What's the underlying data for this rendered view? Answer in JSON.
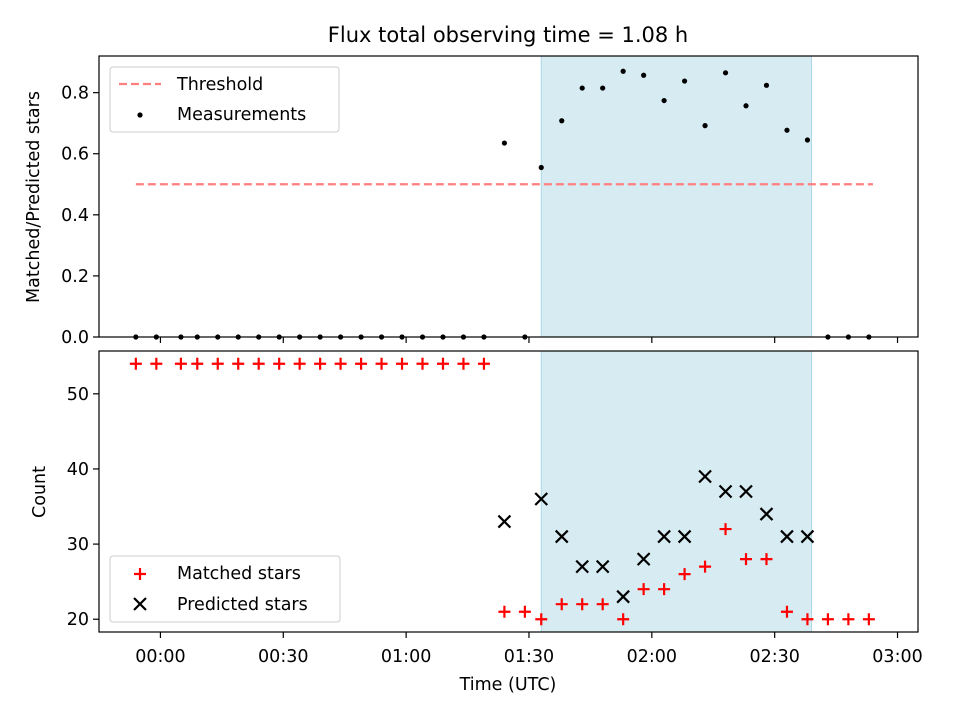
{
  "chart_data": [
    {
      "type": "scatter",
      "title": "Flux total observing time = 1.08 h",
      "xlabel": "",
      "ylabel": "Matched/Predicted stars",
      "xlim": [
        "23:45",
        "03:05"
      ],
      "ylim": [
        0,
        0.92
      ],
      "yticks": [
        "0.0",
        "0.2",
        "0.4",
        "0.6",
        "0.8"
      ],
      "shaded_interval": [
        "01:33",
        "02:39"
      ],
      "shade_color": "#add8e6",
      "legend_position": "upper left",
      "series": [
        {
          "name": "Threshold",
          "style": "dashed-line",
          "color": "#ff7f7f",
          "x": [
            "23:54",
            "02:54"
          ],
          "y": [
            0.5,
            0.5
          ]
        },
        {
          "name": "Measurements",
          "style": "dot",
          "color": "#000000",
          "x": [
            "23:54",
            "23:59",
            "00:05",
            "00:09",
            "00:14",
            "00:19",
            "00:24",
            "00:29",
            "00:34",
            "00:39",
            "00:44",
            "00:49",
            "00:54",
            "00:59",
            "01:04",
            "01:09",
            "01:14",
            "01:19",
            "01:24",
            "01:29",
            "01:33",
            "01:38",
            "01:43",
            "01:48",
            "01:53",
            "01:58",
            "02:03",
            "02:08",
            "02:13",
            "02:18",
            "02:23",
            "02:28",
            "02:33",
            "02:38",
            "02:43",
            "02:48",
            "02:53"
          ],
          "y": [
            0,
            0,
            0,
            0,
            0,
            0,
            0,
            0,
            0,
            0,
            0,
            0,
            0,
            0,
            0,
            0,
            0,
            0,
            0.635,
            0,
            0.555,
            0.708,
            0.815,
            0.815,
            0.87,
            0.857,
            0.774,
            0.838,
            0.692,
            0.865,
            0.757,
            0.824,
            0.677,
            0.645,
            0,
            0,
            0
          ]
        }
      ]
    },
    {
      "type": "scatter",
      "title": "",
      "xlabel": "Time (UTC)",
      "ylabel": "Count",
      "xlim": [
        "23:45",
        "03:05"
      ],
      "ylim": [
        18.3,
        55.7
      ],
      "yticks": [
        "20",
        "30",
        "40",
        "50"
      ],
      "xticks": [
        "00:00",
        "00:30",
        "01:00",
        "01:30",
        "02:00",
        "02:30",
        "03:00"
      ],
      "shaded_interval": [
        "01:33",
        "02:39"
      ],
      "shade_color": "#add8e6",
      "legend_position": "lower left",
      "series": [
        {
          "name": "Matched stars",
          "marker": "+",
          "color": "#ff0000",
          "x": [
            "23:54",
            "23:59",
            "00:05",
            "00:09",
            "00:14",
            "00:19",
            "00:24",
            "00:29",
            "00:34",
            "00:39",
            "00:44",
            "00:49",
            "00:54",
            "00:59",
            "01:04",
            "01:09",
            "01:14",
            "01:19",
            "01:24",
            "01:29",
            "01:33",
            "01:38",
            "01:43",
            "01:48",
            "01:53",
            "01:58",
            "02:03",
            "02:08",
            "02:13",
            "02:18",
            "02:23",
            "02:28",
            "02:33",
            "02:38",
            "02:43",
            "02:48",
            "02:53"
          ],
          "y": [
            54,
            54,
            54,
            54,
            54,
            54,
            54,
            54,
            54,
            54,
            54,
            54,
            54,
            54,
            54,
            54,
            54,
            54,
            21,
            21,
            20,
            22,
            22,
            22,
            20,
            24,
            24,
            26,
            27,
            32,
            28,
            28,
            21,
            20,
            20,
            20,
            20
          ]
        },
        {
          "name": "Predicted stars",
          "marker": "x",
          "color": "#000000",
          "x": [
            "01:24",
            "01:33",
            "01:38",
            "01:43",
            "01:48",
            "01:53",
            "01:58",
            "02:03",
            "02:08",
            "02:13",
            "02:18",
            "02:23",
            "02:28",
            "02:33",
            "02:38"
          ],
          "y": [
            33,
            36,
            31,
            27,
            27,
            23,
            28,
            31,
            31,
            39,
            37,
            37,
            34,
            31,
            31
          ]
        }
      ]
    }
  ]
}
